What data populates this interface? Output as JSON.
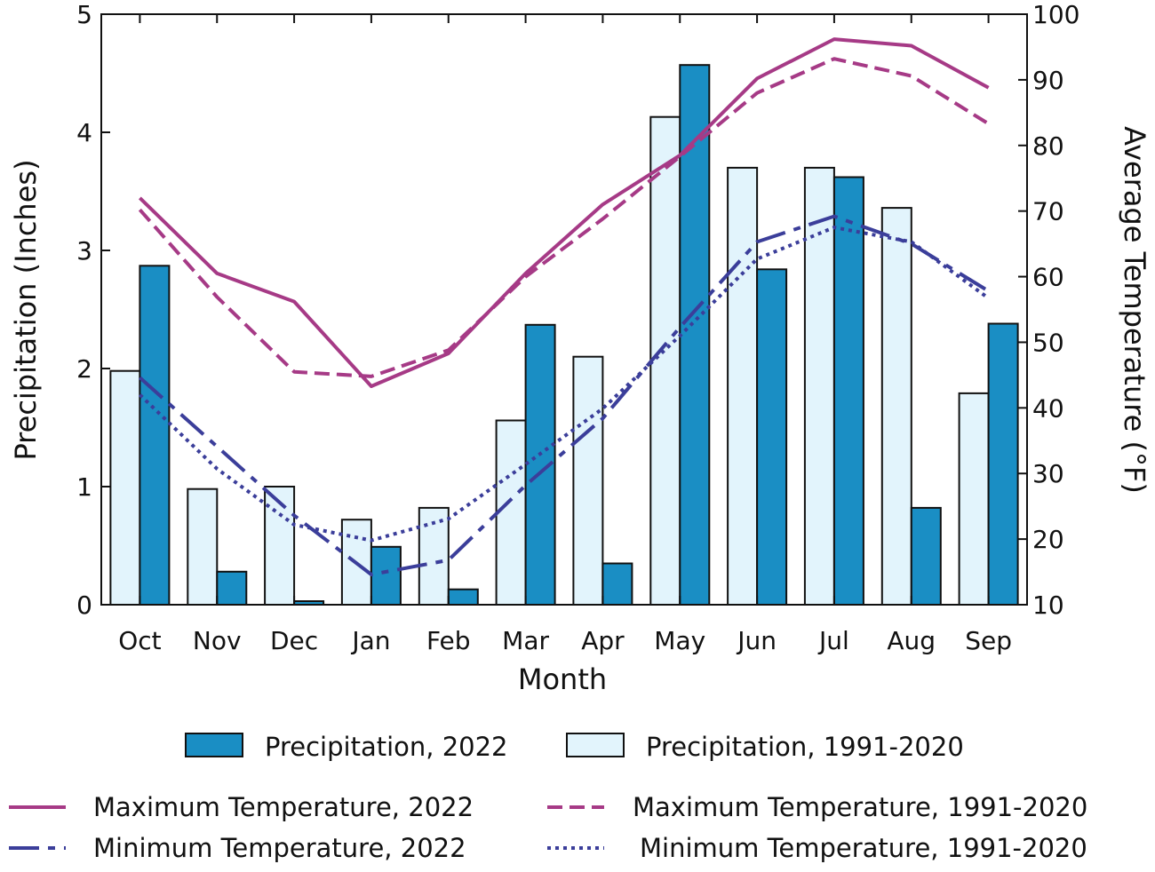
{
  "colors": {
    "bar_2022": "#1a8ec4",
    "bar_normal": "#e2f4fc",
    "bar_stroke": "#111111",
    "max_temp": "#a63a86",
    "min_temp": "#3b3e9a"
  },
  "chart_data": {
    "type": "bar",
    "xlabel": "Month",
    "ylabel_left": "Precipitation (Inches)",
    "ylabel_right": "Average Temperature (°F)",
    "ylim_left": [
      0,
      5
    ],
    "ylim_right": [
      10,
      100
    ],
    "yticks_left": [
      "0",
      "1",
      "2",
      "3",
      "4",
      "5"
    ],
    "yticks_right": [
      "10",
      "20",
      "30",
      "40",
      "50",
      "60",
      "70",
      "80",
      "90",
      "100"
    ],
    "grid": false,
    "categories": [
      "Oct",
      "Nov",
      "Dec",
      "Jan",
      "Feb",
      "Mar",
      "Apr",
      "May",
      "Jun",
      "Jul",
      "Aug",
      "Sep"
    ],
    "bar_series": [
      {
        "name": "Precipitation, 1991-2020",
        "axis": "left",
        "position": "left",
        "values": [
          1.98,
          0.98,
          1.0,
          0.72,
          0.82,
          1.56,
          2.1,
          4.13,
          3.7,
          3.7,
          3.36,
          1.79
        ]
      },
      {
        "name": "Precipitation, 2022",
        "axis": "left",
        "position": "right",
        "values": [
          2.87,
          0.28,
          0.03,
          0.49,
          0.13,
          2.37,
          0.35,
          4.57,
          2.84,
          3.62,
          0.82,
          2.38
        ]
      }
    ],
    "line_series": [
      {
        "name": "Maximum Temperature, 2022",
        "axis": "right",
        "style": "solid",
        "values": [
          72.0,
          60.5,
          56.2,
          43.3,
          48.3,
          60.5,
          71.0,
          78.5,
          90.2,
          96.2,
          95.2,
          88.8
        ]
      },
      {
        "name": "Maximum Temperature, 1991-2020",
        "axis": "right",
        "style": "dashed",
        "values": [
          70.2,
          56.9,
          45.5,
          44.8,
          48.8,
          60.0,
          68.8,
          78.3,
          88.0,
          93.2,
          90.6,
          83.3
        ]
      },
      {
        "name": "Minimum Temperature, 2022",
        "axis": "right",
        "style": "dashdot",
        "values": [
          44.6,
          34.1,
          23.6,
          14.6,
          16.8,
          28.2,
          38.4,
          52.3,
          65.3,
          69.2,
          65.0,
          57.8
        ]
      },
      {
        "name": "Minimum Temperature, 1991-2020",
        "axis": "right",
        "style": "dotted",
        "values": [
          42.0,
          30.7,
          22.2,
          19.8,
          23.1,
          31.4,
          39.9,
          51.0,
          62.7,
          67.5,
          65.3,
          56.7
        ]
      }
    ],
    "legend_placement": "bottom",
    "legend": {
      "row1": [
        "Precipitation, 2022",
        "Precipitation, 1991-2020"
      ],
      "row2": [
        "Maximum Temperature, 2022",
        "Maximum Temperature, 1991-2020"
      ],
      "row3": [
        "Minimum Temperature, 2022",
        "Minimum Temperature, 1991-2020"
      ]
    }
  }
}
